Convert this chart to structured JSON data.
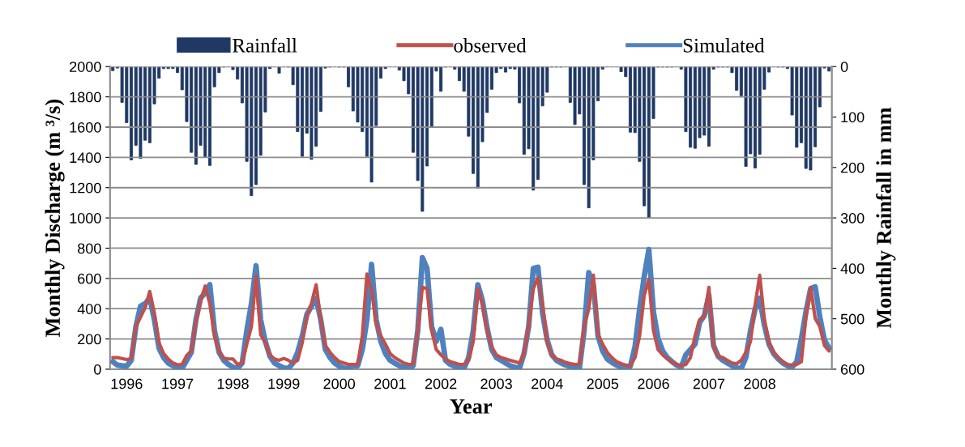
{
  "chart_data": {
    "type": "line",
    "xlabel": "Year",
    "ylabel": "Monthly Discharge (m ³/s)",
    "y2label": "Monthly Rainfall in mm",
    "categories": [
      null,
      null,
      null,
      "1996",
      null,
      null,
      null,
      null,
      null,
      null,
      null,
      null,
      null,
      null,
      "1997",
      null,
      null,
      null,
      null,
      null,
      null,
      null,
      null,
      null,
      null,
      null,
      "1998",
      null,
      null,
      null,
      null,
      null,
      null,
      null,
      null,
      null,
      null,
      "1999",
      null,
      null,
      null,
      null,
      null,
      null,
      null,
      null,
      null,
      null,
      null,
      "2000",
      null,
      null,
      null,
      null,
      null,
      null,
      null,
      null,
      null,
      null,
      "2001",
      null,
      null,
      null,
      null,
      null,
      null,
      null,
      null,
      null,
      null,
      "2002",
      null,
      null,
      null,
      null,
      null,
      null,
      null,
      null,
      null,
      null,
      null,
      "2003",
      null,
      null,
      null,
      null,
      null,
      null,
      null,
      null,
      null,
      null,
      "2004",
      null,
      null,
      null,
      null,
      null,
      null,
      null,
      null,
      null,
      null,
      null,
      "2005",
      null,
      null,
      null,
      null,
      null,
      null,
      null,
      null,
      null,
      null,
      "2006",
      null,
      null,
      null,
      null,
      null,
      null,
      null,
      null,
      null,
      null,
      null,
      "2007",
      null,
      null,
      null,
      null,
      null,
      null,
      null,
      null,
      null,
      null,
      "2008",
      null,
      null,
      null,
      null,
      null,
      null,
      null,
      null,
      null,
      null,
      null,
      null,
      null,
      null,
      null
    ],
    "ylim": [
      0,
      2000
    ],
    "yticks": [
      0,
      200,
      400,
      600,
      800,
      1000,
      1200,
      1400,
      1600,
      1800,
      2000
    ],
    "y2lim": [
      600,
      0
    ],
    "y2ticks": [
      0,
      100,
      200,
      300,
      400,
      500,
      600
    ],
    "grid": "y",
    "legend": "top",
    "marker": "none",
    "line_style": "solid",
    "series": [
      {
        "name": "Rainfall",
        "type": "bar",
        "axis": "y2",
        "color": "#1f3864",
        "values": [
          8,
          3,
          71,
          111,
          185,
          156,
          182,
          146,
          151,
          74,
          23,
          4,
          4,
          4,
          12,
          46,
          109,
          170,
          194,
          156,
          179,
          196,
          40,
          12,
          1,
          0,
          6,
          25,
          72,
          188,
          256,
          234,
          176,
          90,
          4,
          0,
          13,
          0,
          1,
          36,
          129,
          178,
          132,
          184,
          158,
          89,
          3,
          1,
          0,
          1,
          1,
          40,
          88,
          110,
          129,
          178,
          229,
          117,
          23,
          4,
          0,
          0,
          7,
          28,
          54,
          170,
          226,
          287,
          197,
          119,
          9,
          49,
          1,
          0,
          5,
          28,
          49,
          138,
          212,
          241,
          149,
          91,
          45,
          12,
          4,
          11,
          4,
          5,
          72,
          174,
          163,
          245,
          224,
          78,
          51,
          1,
          1,
          1,
          0,
          71,
          115,
          94,
          234,
          280,
          185,
          68,
          5,
          0,
          0,
          0,
          10,
          20,
          130,
          131,
          188,
          276,
          300,
          103,
          1,
          1,
          1,
          1,
          0,
          5,
          129,
          160,
          162,
          141,
          136,
          158,
          5,
          1,
          1,
          1,
          12,
          47,
          58,
          198,
          173,
          201,
          174,
          45,
          11,
          0,
          1,
          1,
          4,
          96,
          160,
          151,
          202,
          205,
          159,
          80,
          3,
          9
        ]
      },
      {
        "name": "observed",
        "color": "#c0504d",
        "values": [
          77,
          77,
          71,
          64,
          71,
          282,
          345,
          407,
          514,
          371,
          175,
          104,
          68,
          41,
          29,
          32,
          91,
          121,
          318,
          452,
          550,
          434,
          220,
          121,
          73,
          68,
          68,
          32,
          41,
          166,
          282,
          613,
          229,
          175,
          95,
          68,
          59,
          71,
          59,
          41,
          59,
          175,
          345,
          434,
          559,
          327,
          157,
          112,
          77,
          50,
          41,
          32,
          32,
          32,
          220,
          630,
          523,
          300,
          220,
          166,
          104,
          77,
          59,
          41,
          32,
          32,
          255,
          541,
          532,
          255,
          130,
          95,
          68,
          50,
          41,
          32,
          32,
          59,
          184,
          532,
          425,
          255,
          148,
          95,
          77,
          68,
          59,
          50,
          41,
          104,
          291,
          532,
          604,
          434,
          175,
          95,
          68,
          59,
          45,
          37,
          32,
          32,
          282,
          398,
          621,
          229,
          166,
          112,
          77,
          50,
          37,
          27,
          23,
          77,
          220,
          488,
          595,
          255,
          130,
          95,
          68,
          50,
          32,
          23,
          32,
          77,
          220,
          327,
          345,
          541,
          148,
          86,
          77,
          59,
          41,
          36,
          59,
          112,
          184,
          425,
          621,
          327,
          175,
          112,
          77,
          50,
          32,
          27,
          32,
          50,
          345,
          541,
          336,
          282,
          157,
          121
        ]
      },
      {
        "name": "Simulated",
        "color": "#4f81bd",
        "values": [
          50,
          27,
          23,
          20,
          59,
          282,
          416,
          434,
          470,
          327,
          139,
          77,
          41,
          23,
          14,
          5,
          59,
          112,
          327,
          470,
          505,
          559,
          255,
          112,
          59,
          32,
          14,
          5,
          41,
          255,
          434,
          684,
          327,
          184,
          86,
          41,
          23,
          9,
          5,
          41,
          112,
          220,
          363,
          416,
          470,
          327,
          130,
          77,
          41,
          20,
          9,
          5,
          23,
          23,
          130,
          327,
          693,
          327,
          184,
          104,
          59,
          41,
          23,
          14,
          5,
          23,
          255,
          738,
          666,
          282,
          184,
          264,
          59,
          32,
          20,
          9,
          5,
          77,
          255,
          559,
          452,
          273,
          130,
          77,
          59,
          41,
          23,
          14,
          5,
          104,
          282,
          666,
          675,
          371,
          193,
          95,
          59,
          41,
          27,
          18,
          11,
          9,
          255,
          639,
          559,
          220,
          121,
          68,
          45,
          27,
          14,
          5,
          20,
          148,
          398,
          613,
          791,
          380,
          202,
          121,
          77,
          50,
          27,
          14,
          95,
          130,
          166,
          309,
          354,
          488,
          157,
          86,
          59,
          41,
          23,
          9,
          5,
          77,
          255,
          398,
          470,
          291,
          166,
          104,
          68,
          41,
          23,
          14,
          50,
          200,
          380,
          532,
          545,
          345,
          193,
          139
        ]
      }
    ]
  }
}
